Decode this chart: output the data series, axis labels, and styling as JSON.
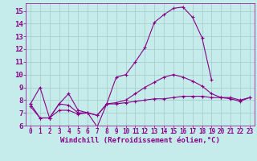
{
  "background_color": "#c5ecea",
  "grid_color": "#a0ccca",
  "line_color": "#880088",
  "xlabel": "Windchill (Refroidissement éolien,°C)",
  "xlabel_fontsize": 6.5,
  "ytick_fontsize": 6.5,
  "xtick_fontsize": 5.5,
  "ylim": [
    6,
    15.6
  ],
  "xlim": [
    -0.5,
    23.5
  ],
  "yticks": [
    6,
    7,
    8,
    9,
    10,
    11,
    12,
    13,
    14,
    15
  ],
  "xticks": [
    0,
    1,
    2,
    3,
    4,
    5,
    6,
    7,
    8,
    9,
    10,
    11,
    12,
    13,
    14,
    15,
    16,
    17,
    18,
    19,
    20,
    21,
    22,
    23
  ],
  "series": [
    {
      "x": [
        0,
        1,
        2,
        3,
        4,
        5,
        6,
        7,
        8,
        9,
        10,
        11,
        12,
        13,
        14,
        15,
        16,
        17,
        18,
        19
      ],
      "y": [
        7.7,
        9.0,
        6.6,
        7.7,
        8.5,
        7.2,
        7.0,
        5.9,
        7.7,
        9.8,
        10.0,
        11.0,
        12.1,
        14.1,
        14.7,
        15.2,
        15.3,
        14.5,
        12.9,
        9.6
      ],
      "marker": "+"
    },
    {
      "x": [
        0,
        1,
        2,
        3,
        4,
        5,
        6,
        7,
        8,
        9,
        10,
        11,
        12,
        13,
        14,
        15,
        16,
        17,
        18,
        19,
        20,
        21,
        22,
        23
      ],
      "y": [
        7.7,
        6.6,
        6.6,
        7.7,
        7.6,
        7.0,
        7.0,
        6.8,
        7.7,
        7.8,
        8.0,
        8.5,
        9.0,
        9.4,
        9.8,
        10.0,
        9.8,
        9.5,
        9.1,
        8.5,
        8.2,
        8.1,
        7.9,
        8.2
      ],
      "marker": "+"
    },
    {
      "x": [
        0,
        1,
        2,
        3,
        4,
        5,
        6,
        7,
        8,
        9,
        10,
        11,
        12,
        13,
        14,
        15,
        16,
        17,
        18,
        19,
        20,
        21,
        22,
        23
      ],
      "y": [
        7.5,
        6.6,
        6.6,
        7.2,
        7.2,
        6.9,
        7.0,
        6.8,
        7.7,
        7.7,
        7.8,
        7.9,
        8.0,
        8.1,
        8.1,
        8.2,
        8.3,
        8.3,
        8.3,
        8.2,
        8.2,
        8.2,
        8.0,
        8.2
      ],
      "marker": "+"
    }
  ]
}
